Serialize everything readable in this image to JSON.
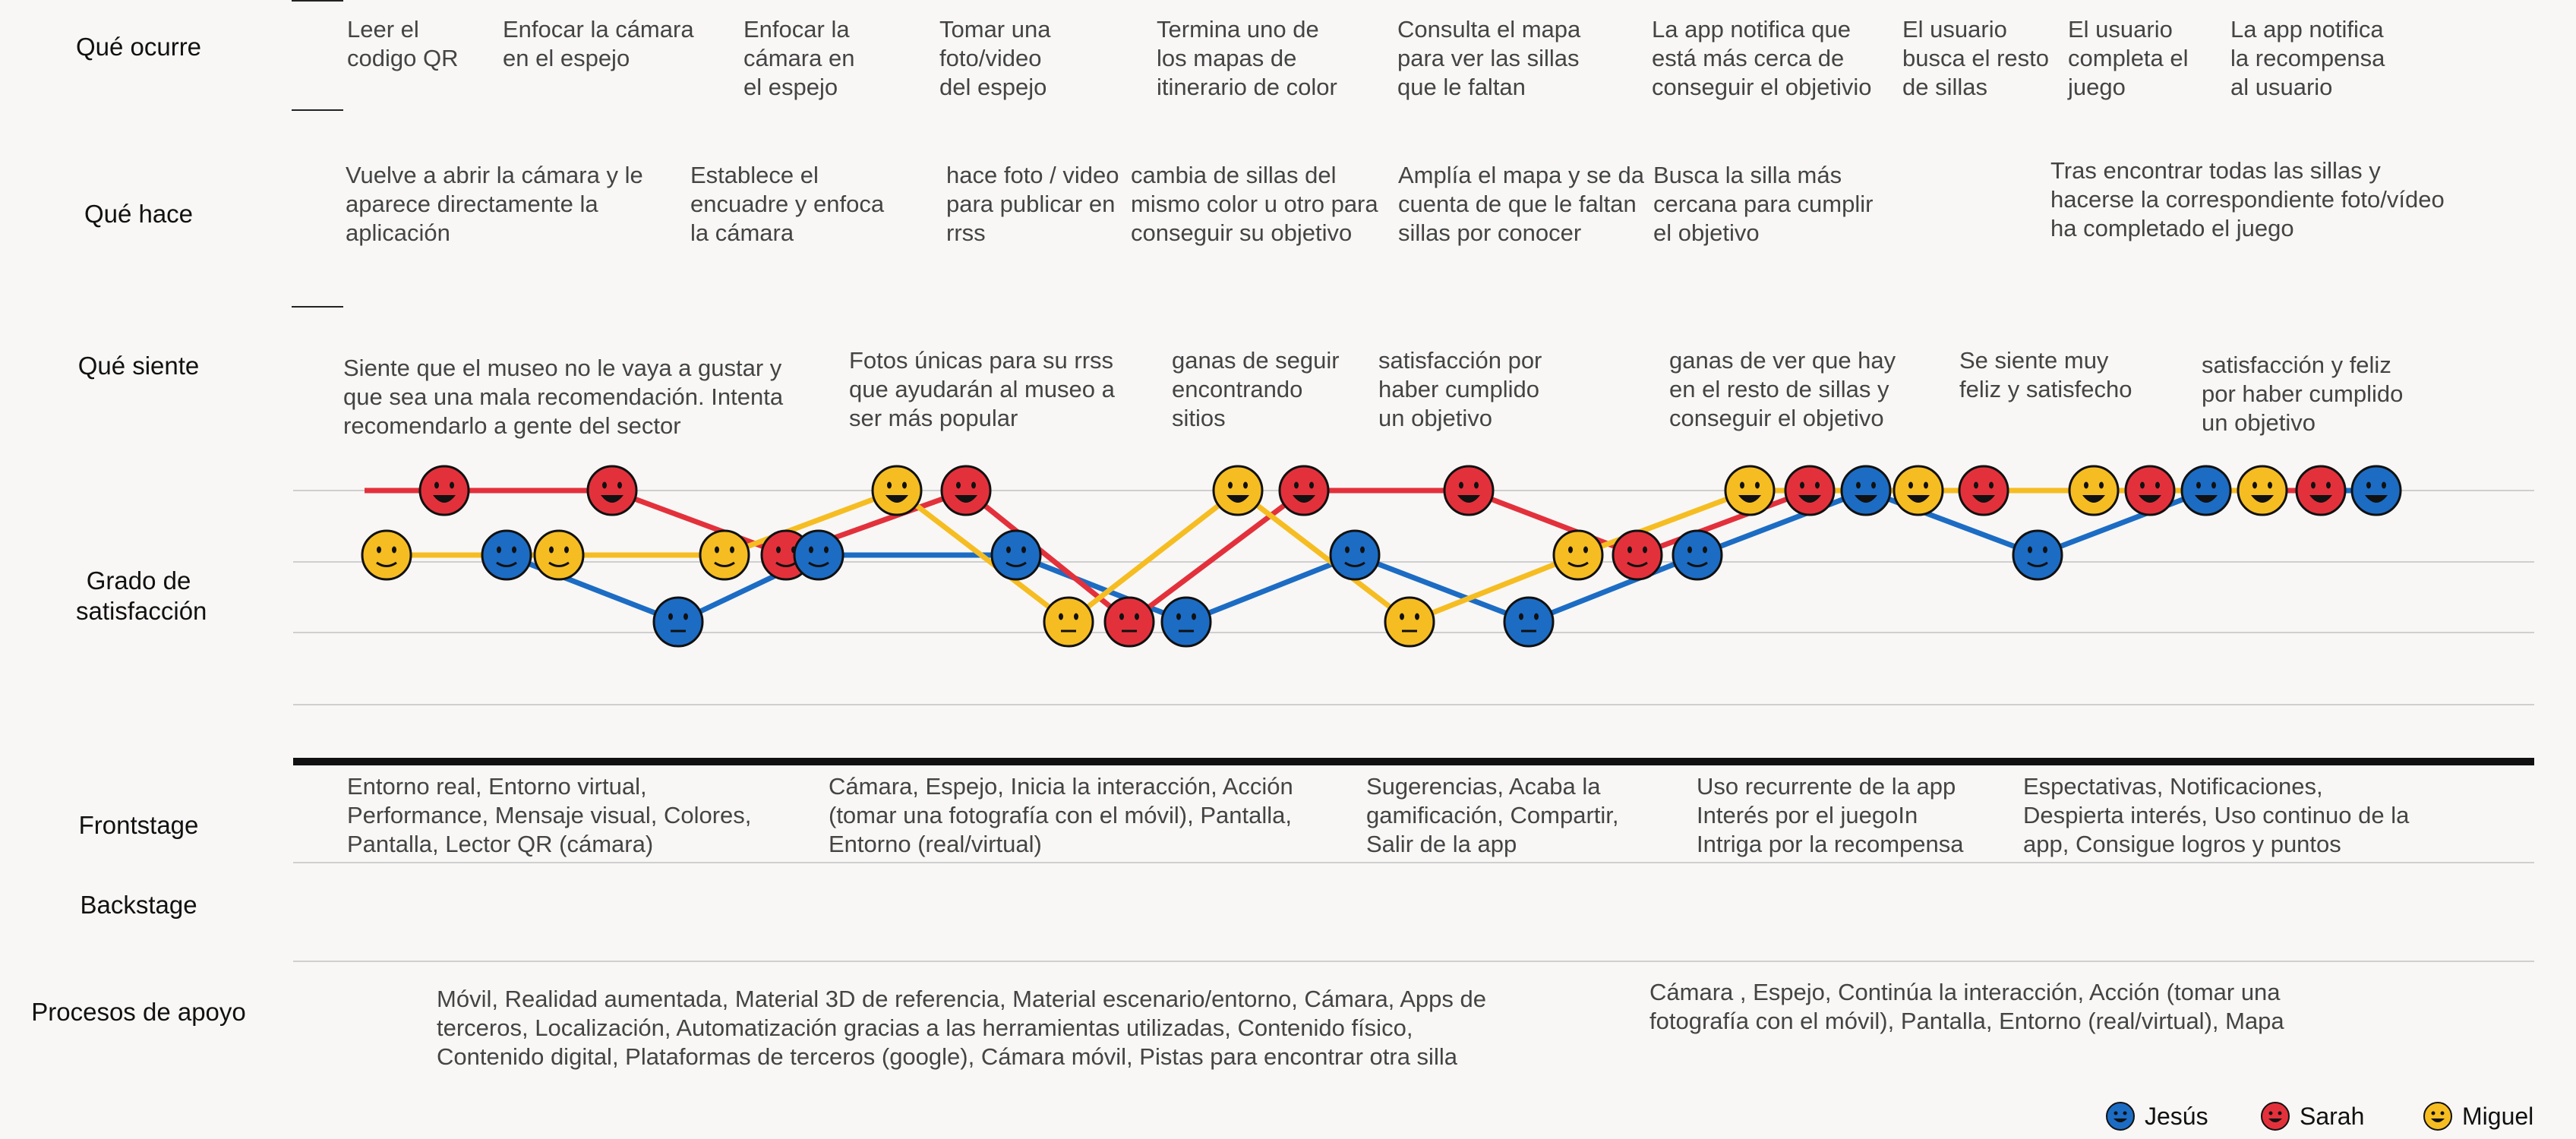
{
  "rows": {
    "que_ocurre": "Qué ocurre",
    "que_hace": "Qué hace",
    "que_siente": "Qué siente",
    "grado": "Grado de satisfacción",
    "frontstage": "Frontstage",
    "backstage": "Backstage",
    "procesos": "Procesos de apoyo"
  },
  "ocurre": [
    "Leer el codigo QR",
    "Enfocar la cámara en el espejo",
    "Enfocar la cámara en el espejo",
    "Tomar una foto/video del espejo",
    "Termina uno de los mapas de itinerario de color",
    "Consulta el mapa para ver las sillas que le faltan",
    "La app notifica que está más cerca de conseguir el objetivio",
    "El usuario busca el resto de sillas",
    "El usuario completa el juego",
    "La app notifica la recompensa al usuario"
  ],
  "hace": [
    "Vuelve a abrir la cámara y le aparece directamente la aplicación",
    "Establece el encuadre y enfoca la cámara",
    "hace foto / video para publicar en rrss",
    "cambia de sillas del mismo color u otro para conseguir su objetivo",
    "Amplía el mapa y se da cuenta de que le faltan sillas por conocer",
    "Busca la silla más cercana para cumplir el objetivo",
    "Tras encontrar todas las sillas y hacerse la correspondiente foto/vídeo ha completado el juego"
  ],
  "siente": [
    "Siente que el museo no le vaya a gustar y que sea una mala recomendación. Intenta recomendarlo a gente del sector",
    "Fotos únicas para su rrss que ayudarán al museo a ser más popular",
    "ganas de seguir encontrando sitios",
    "satisfacción por haber cumplido un objetivo",
    "ganas de ver que hay en el resto de sillas y conseguir el objetivo",
    "Se siente muy feliz y satisfecho",
    "satisfacción y feliz por haber cumplido un objetivo"
  ],
  "frontstage": [
    "Entorno real, Entorno virtual, Performance, Mensaje visual, Colores, Pantalla, Lector QR (cámara)",
    "Cámara, Espejo, Inicia la interacción, Acción (tomar una fotografía con el móvil), Pantalla, Entorno (real/virtual)",
    "Sugerencias, Acaba la gamificación, Compartir, Salir de la app",
    "Uso recurrente de la app Interés por el juegoIn Intriga por la recompensa",
    "Espectativas, Notificaciones, Despierta interés, Uso continuo de la app, Consigue logros y puntos"
  ],
  "procesos": [
    "Móvil, Realidad aumentada, Material 3D de referencia, Material escenario/entorno, Cámara, Apps de terceros, Localización, Automatización gracias a las herramientas utilizadas, Contenido físico, Contenido digital, Plataformas de terceros (google), Cámara móvil, Pistas para encontrar otra silla",
    "Cámara , Espejo, Continúa la interacción, Acción (tomar una fotografía con el móvil), Pantalla, Entorno (real/virtual), Mapa"
  ],
  "chart_data": {
    "type": "line",
    "y_scale": "satisfaction levels: 3 = happy, 2 = neutral-happy, 1 = neutral",
    "series": [
      {
        "name": "Jesús",
        "color": "#1c6cc4",
        "x": [
          667,
          893,
          1078,
          1338,
          1562,
          1784,
          2013,
          2235,
          2457,
          2683,
          2905,
          3129
        ],
        "y": [
          2,
          1,
          2,
          2,
          1,
          2,
          1,
          2,
          3,
          2,
          3,
          3
        ]
      },
      {
        "name": "Sarah",
        "color": "#e3313c",
        "x": [
          585,
          806,
          1035,
          1272,
          1487,
          1717,
          1934,
          2156,
          2383,
          2612,
          2831,
          3056
        ],
        "y": [
          3,
          3,
          2,
          3,
          1,
          3,
          3,
          2,
          3,
          3,
          3,
          3
        ]
      },
      {
        "name": "Miguel",
        "color": "#f6bd22",
        "x": [
          509,
          736,
          954,
          1181,
          1407,
          1630,
          1856,
          2078,
          2304,
          2526,
          2757,
          2979
        ],
        "y": [
          2,
          2,
          2,
          3,
          1,
          3,
          1,
          2,
          3,
          3,
          3,
          3
        ]
      }
    ],
    "legend": "bottom-right",
    "legend_entries": [
      "Jesús",
      "Sarah",
      "Miguel"
    ]
  },
  "colors": {
    "jesus": "#1c6cc4",
    "sarah": "#e3313c",
    "miguel": "#f6bd22"
  }
}
